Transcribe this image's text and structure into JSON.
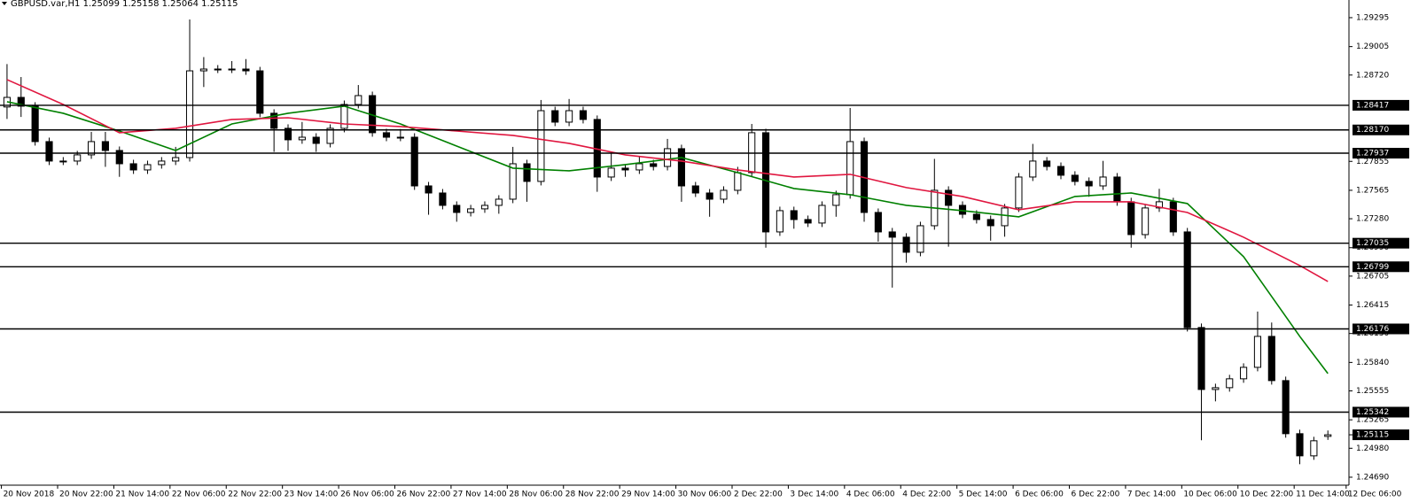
{
  "chart_data": {
    "type": "candlestick",
    "title": "GBPUSD.var,H1  1.25099 1.25158 1.25064 1.25115",
    "ylim": [
      1.2461,
      1.29472
    ],
    "xlim": [
      -0.5,
      95.5
    ],
    "yticks": [
      {
        "value": 1.29295,
        "label": "1.29295"
      },
      {
        "value": 1.29005,
        "label": "1.29005"
      },
      {
        "value": 1.2872,
        "label": "1.28720"
      },
      {
        "value": 1.27855,
        "label": "1.27855"
      },
      {
        "value": 1.27565,
        "label": "1.27565"
      },
      {
        "value": 1.2728,
        "label": "1.27280"
      },
      {
        "value": 1.2699,
        "label": "1.26990"
      },
      {
        "value": 1.26705,
        "label": "1.26705"
      },
      {
        "value": 1.26415,
        "label": "1.26415"
      },
      {
        "value": 1.2613,
        "label": "1.26130"
      },
      {
        "value": 1.2584,
        "label": "1.25840"
      },
      {
        "value": 1.25555,
        "label": "1.25555"
      },
      {
        "value": 1.25265,
        "label": "1.25265"
      },
      {
        "value": 1.2498,
        "label": "1.24980"
      },
      {
        "value": 1.2469,
        "label": "1.24690"
      }
    ],
    "xticks": [
      {
        "value": -0.4,
        "label": "20 Nov 2018"
      },
      {
        "value": 3.6,
        "label": "20 Nov 22:00"
      },
      {
        "value": 7.6,
        "label": "21 Nov 14:00"
      },
      {
        "value": 11.6,
        "label": "22 Nov 06:00"
      },
      {
        "value": 15.6,
        "label": "22 Nov 22:00"
      },
      {
        "value": 19.6,
        "label": "23 Nov 14:00"
      },
      {
        "value": 23.6,
        "label": "26 Nov 06:00"
      },
      {
        "value": 27.6,
        "label": "26 Nov 22:00"
      },
      {
        "value": 31.6,
        "label": "27 Nov 14:00"
      },
      {
        "value": 35.6,
        "label": "28 Nov 06:00"
      },
      {
        "value": 39.6,
        "label": "28 Nov 22:00"
      },
      {
        "value": 43.6,
        "label": "29 Nov 14:00"
      },
      {
        "value": 47.6,
        "label": "30 Nov 06:00"
      },
      {
        "value": 51.6,
        "label": "2 Dec 22:00"
      },
      {
        "value": 55.6,
        "label": "3 Dec 14:00"
      },
      {
        "value": 59.6,
        "label": "4 Dec 06:00"
      },
      {
        "value": 63.6,
        "label": "4 Dec 22:00"
      },
      {
        "value": 67.6,
        "label": "5 Dec 14:00"
      },
      {
        "value": 71.6,
        "label": "6 Dec 06:00"
      },
      {
        "value": 75.6,
        "label": "6 Dec 22:00"
      },
      {
        "value": 79.6,
        "label": "7 Dec 14:00"
      },
      {
        "value": 83.6,
        "label": "10 Dec 06:00"
      },
      {
        "value": 87.6,
        "label": "10 Dec 22:00"
      },
      {
        "value": 91.6,
        "label": "11 Dec 14:00"
      },
      {
        "value": 95.3,
        "label": "12 Dec 06:00"
      }
    ],
    "levels": [
      {
        "value": 1.28417,
        "label": "1.28417"
      },
      {
        "value": 1.2817,
        "label": "1.28170"
      },
      {
        "value": 1.27937,
        "label": "1.27937"
      },
      {
        "value": 1.27035,
        "label": "1.27035"
      },
      {
        "value": 1.26799,
        "label": "1.26799"
      },
      {
        "value": 1.26176,
        "label": "1.26176"
      },
      {
        "value": 1.25342,
        "label": "1.25342"
      }
    ],
    "current_price": {
      "value": 1.25115,
      "label": "1.25115"
    },
    "up_color": "#ffffff",
    "down_color": "#000000",
    "outline_color": "#000000",
    "ohlc": [
      [
        1.284,
        1.2883,
        1.2828,
        1.28496
      ],
      [
        1.28496,
        1.287,
        1.283,
        1.28408
      ],
      [
        1.28408,
        1.28448,
        1.28013,
        1.28053
      ],
      [
        1.28053,
        1.28093,
        1.27818,
        1.27858
      ],
      [
        1.27858,
        1.27898,
        1.27818,
        1.27858
      ],
      [
        1.27858,
        1.2796,
        1.27818,
        1.2792
      ],
      [
        1.2792,
        1.2815,
        1.2788,
        1.28053
      ],
      [
        1.28053,
        1.2815,
        1.278,
        1.27964
      ],
      [
        1.27964,
        1.28004,
        1.277,
        1.27831
      ],
      [
        1.27831,
        1.27871,
        1.27729,
        1.27769
      ],
      [
        1.27769,
        1.27862,
        1.27729,
        1.27822
      ],
      [
        1.27822,
        1.27898,
        1.27782,
        1.27858
      ],
      [
        1.27858,
        1.28,
        1.27818,
        1.27893
      ],
      [
        1.27893,
        1.29277,
        1.27853,
        1.28762
      ],
      [
        1.28762,
        1.289,
        1.286,
        1.2878
      ],
      [
        1.2878,
        1.2882,
        1.2874,
        1.2878
      ],
      [
        1.2878,
        1.2886,
        1.2874,
        1.2878
      ],
      [
        1.2878,
        1.2888,
        1.28722,
        1.28762
      ],
      [
        1.28762,
        1.28802,
        1.28297,
        1.28337
      ],
      [
        1.28337,
        1.28377,
        1.2795,
        1.28186
      ],
      [
        1.28186,
        1.28226,
        1.2796,
        1.28071
      ],
      [
        1.28071,
        1.2825,
        1.28031,
        1.28097
      ],
      [
        1.28097,
        1.28137,
        1.2795,
        1.28035
      ],
      [
        1.28035,
        1.28226,
        1.27995,
        1.28186
      ],
      [
        1.28186,
        1.28465,
        1.28146,
        1.28425
      ],
      [
        1.28425,
        1.2862,
        1.28385,
        1.28514
      ],
      [
        1.28514,
        1.28554,
        1.28102,
        1.28142
      ],
      [
        1.28142,
        1.28182,
        1.28057,
        1.28097
      ],
      [
        1.28097,
        1.2818,
        1.28057,
        1.28097
      ],
      [
        1.28097,
        1.28137,
        1.27569,
        1.27609
      ],
      [
        1.27609,
        1.27649,
        1.2732,
        1.27538
      ],
      [
        1.27538,
        1.27578,
        1.27374,
        1.27414
      ],
      [
        1.27414,
        1.27454,
        1.2725,
        1.27343
      ],
      [
        1.27343,
        1.27419,
        1.27303,
        1.27379
      ],
      [
        1.27379,
        1.27454,
        1.27339,
        1.27414
      ],
      [
        1.27414,
        1.27516,
        1.2733,
        1.27476
      ],
      [
        1.27476,
        1.28,
        1.27436,
        1.27831
      ],
      [
        1.27831,
        1.27871,
        1.2745,
        1.27654
      ],
      [
        1.27654,
        1.2847,
        1.27614,
        1.28363
      ],
      [
        1.28363,
        1.28403,
        1.28208,
        1.28248
      ],
      [
        1.28248,
        1.2848,
        1.28208,
        1.28363
      ],
      [
        1.28363,
        1.28403,
        1.28235,
        1.28275
      ],
      [
        1.28275,
        1.28315,
        1.2755,
        1.27698
      ],
      [
        1.27698,
        1.2794,
        1.27658,
        1.27787
      ],
      [
        1.27787,
        1.27827,
        1.277,
        1.27769
      ],
      [
        1.27769,
        1.279,
        1.27729,
        1.27831
      ],
      [
        1.27831,
        1.27871,
        1.27764,
        1.27804
      ],
      [
        1.27804,
        1.2808,
        1.27764,
        1.27982
      ],
      [
        1.27982,
        1.28022,
        1.2745,
        1.27609
      ],
      [
        1.27609,
        1.27649,
        1.27498,
        1.27538
      ],
      [
        1.27538,
        1.27578,
        1.273,
        1.27476
      ],
      [
        1.27476,
        1.27605,
        1.27436,
        1.27565
      ],
      [
        1.27565,
        1.278,
        1.27525,
        1.27742
      ],
      [
        1.27742,
        1.2823,
        1.27702,
        1.28142
      ],
      [
        1.28142,
        1.28182,
        1.2699,
        1.27148
      ],
      [
        1.27148,
        1.27401,
        1.27108,
        1.27361
      ],
      [
        1.27361,
        1.27401,
        1.2718,
        1.27272
      ],
      [
        1.27272,
        1.27312,
        1.27197,
        1.27237
      ],
      [
        1.27237,
        1.27454,
        1.27197,
        1.27414
      ],
      [
        1.27414,
        1.27561,
        1.273,
        1.27521
      ],
      [
        1.27521,
        1.2839,
        1.27481,
        1.28053
      ],
      [
        1.28053,
        1.28093,
        1.2725,
        1.27343
      ],
      [
        1.27343,
        1.27383,
        1.2705,
        1.27148
      ],
      [
        1.27148,
        1.27188,
        1.2659,
        1.27095
      ],
      [
        1.27095,
        1.27135,
        1.2684,
        1.26944
      ],
      [
        1.26944,
        1.2725,
        1.26904,
        1.2721
      ],
      [
        1.2721,
        1.2788,
        1.2717,
        1.27565
      ],
      [
        1.27565,
        1.27605,
        1.27,
        1.27414
      ],
      [
        1.27414,
        1.27454,
        1.27285,
        1.27325
      ],
      [
        1.27325,
        1.27365,
        1.27232,
        1.27272
      ],
      [
        1.27272,
        1.27312,
        1.2706,
        1.2721
      ],
      [
        1.2721,
        1.27428,
        1.271,
        1.27388
      ],
      [
        1.27388,
        1.27738,
        1.27348,
        1.27698
      ],
      [
        1.27698,
        1.2803,
        1.27658,
        1.27858
      ],
      [
        1.27858,
        1.27898,
        1.27764,
        1.27804
      ],
      [
        1.27804,
        1.27844,
        1.27676,
        1.27716
      ],
      [
        1.27716,
        1.27756,
        1.27614,
        1.27654
      ],
      [
        1.27654,
        1.27694,
        1.275,
        1.27609
      ],
      [
        1.27609,
        1.2786,
        1.27569,
        1.27698
      ],
      [
        1.27698,
        1.27738,
        1.2741,
        1.2745
      ],
      [
        1.2745,
        1.2749,
        1.2699,
        1.27121
      ],
      [
        1.27121,
        1.27428,
        1.27081,
        1.27388
      ],
      [
        1.27388,
        1.2758,
        1.27348,
        1.2745
      ],
      [
        1.2745,
        1.2749,
        1.27108,
        1.27148
      ],
      [
        1.27148,
        1.27188,
        1.2615,
        1.2619
      ],
      [
        1.2619,
        1.2623,
        1.2506,
        1.25569
      ],
      [
        1.25569,
        1.25627,
        1.2545,
        1.25587
      ],
      [
        1.25587,
        1.25716,
        1.25547,
        1.25676
      ],
      [
        1.25676,
        1.25831,
        1.25636,
        1.25791
      ],
      [
        1.25791,
        1.2635,
        1.25751,
        1.26101
      ],
      [
        1.26101,
        1.2624,
        1.25618,
        1.25658
      ],
      [
        1.25658,
        1.25698,
        1.25086,
        1.25126
      ],
      [
        1.25126,
        1.25166,
        1.2482,
        1.24904
      ],
      [
        1.24904,
        1.25095,
        1.24864,
        1.25055
      ],
      [
        1.25099,
        1.25158,
        1.25064,
        1.25115
      ]
    ],
    "lines": [
      {
        "color": "#008000",
        "x": [
          0,
          4,
          8,
          12,
          16,
          20,
          24,
          28,
          32,
          36,
          40,
          44,
          48,
          52,
          56,
          60,
          64,
          68,
          72,
          76,
          80,
          84,
          88,
          92,
          94
        ],
        "values": [
          1.28452,
          1.28337,
          1.28159,
          1.27964,
          1.2823,
          1.28337,
          1.28408,
          1.2823,
          1.28008,
          1.27787,
          1.2776,
          1.27822,
          1.27893,
          1.27742,
          1.27583,
          1.27521,
          1.27414,
          1.27361,
          1.27299,
          1.27503,
          1.27538,
          1.27432,
          1.269,
          1.26101,
          1.25729
        ]
      },
      {
        "color": "#e0163f",
        "x": [
          0,
          4,
          8,
          12,
          16,
          20,
          24,
          28,
          32,
          36,
          40,
          44,
          48,
          52,
          56,
          60,
          64,
          68,
          72,
          76,
          80,
          84,
          88,
          92,
          94
        ],
        "values": [
          1.28674,
          1.28425,
          1.28142,
          1.28186,
          1.28275,
          1.28292,
          1.2823,
          1.28204,
          1.28159,
          1.28115,
          1.28035,
          1.2792,
          1.27858,
          1.27769,
          1.27698,
          1.27725,
          1.27592,
          1.27503,
          1.2737,
          1.2745,
          1.2745,
          1.27343,
          1.27095,
          1.26811,
          1.26651
        ]
      }
    ]
  }
}
